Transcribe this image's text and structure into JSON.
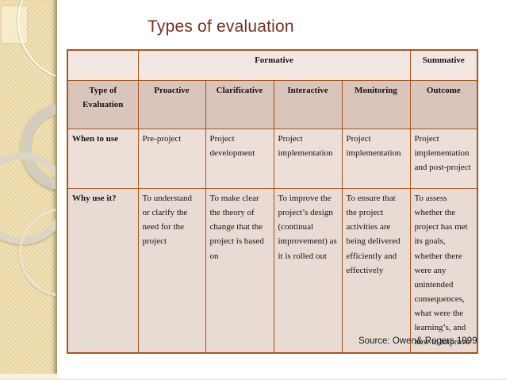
{
  "slide": {
    "title": "Types of evaluation",
    "source": "Source: Owen& Rogers 1999"
  },
  "table": {
    "group_header": {
      "formative": "Formative",
      "summative": "Summative"
    },
    "columns": [
      "Type of Evaluation",
      "Proactive",
      "Clarificative",
      "Interactive",
      "Monitoring",
      "Outcome"
    ],
    "rows": [
      {
        "label": "When to use",
        "cells": [
          "Pre-project",
          "Project development",
          "Project implementation",
          "Project implementation",
          "Project implementation and post-project"
        ]
      },
      {
        "label": "Why use it?",
        "cells": [
          "To understand or clarify the need for the project",
          "To make clear the theory of change that the project is based on",
          "To improve the project’s design (continual improvement) as it is rolled out",
          "To ensure that the project activities are being delivered efficiently and effectively",
          "To assess whether the project has met its goals, whether there were any unintended consequences, what were the learning’s, and how to improve"
        ]
      }
    ]
  },
  "colors": {
    "title-color": "#73301e",
    "table-border": "#a9551f",
    "header-row-bg": "#f2e8e1",
    "column-header-bg": "#d9c5ba",
    "row-when-bg": "#ecdfd7",
    "row-why-bg": "#e8dbd3",
    "sidebar-bg": "#eedaa6",
    "source-text": "#1a1a1a"
  }
}
